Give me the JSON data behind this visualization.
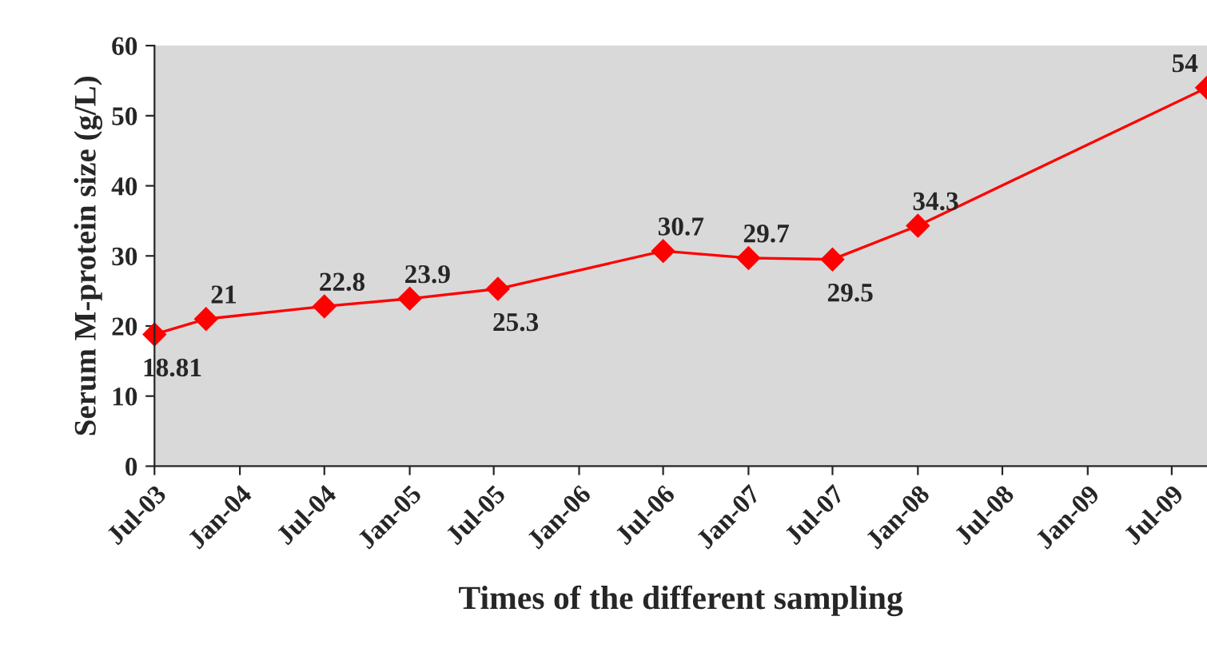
{
  "chart_data": {
    "type": "line",
    "xlabel": "Times of the different sampling",
    "ylabel": "Serum M-protein size (g/L)",
    "x": [
      "2003-07-01",
      "2003-10-20",
      "2004-07-01",
      "2005-01-01",
      "2005-07-10",
      "2006-07-01",
      "2007-01-01",
      "2007-07-01",
      "2008-01-01",
      "2009-09-15"
    ],
    "series": [
      {
        "color": "#ff0000",
        "values": [
          18.81,
          21,
          22.8,
          23.9,
          25.3,
          30.7,
          29.7,
          29.5,
          34.3,
          54
        ]
      }
    ],
    "data_labels": true,
    "marker": "diamond",
    "line_style": "solid",
    "grid": false,
    "legend": false,
    "ylim": [
      0,
      60
    ],
    "yticks": [
      0,
      10,
      20,
      30,
      40,
      50,
      60
    ],
    "xlim": [
      "2003-07-01",
      "2009-09-15"
    ],
    "xticks": [
      {
        "value": "2003-07-01",
        "label": "Jul-03"
      },
      {
        "value": "2004-01-01",
        "label": "Jan-04"
      },
      {
        "value": "2004-07-01",
        "label": "Jul-04"
      },
      {
        "value": "2005-01-01",
        "label": "Jan-05"
      },
      {
        "value": "2005-07-01",
        "label": "Jul-05"
      },
      {
        "value": "2006-01-01",
        "label": "Jan-06"
      },
      {
        "value": "2006-07-01",
        "label": "Jul-06"
      },
      {
        "value": "2007-01-01",
        "label": "Jan-07"
      },
      {
        "value": "2007-07-01",
        "label": "Jul-07"
      },
      {
        "value": "2008-01-01",
        "label": "Jan-08"
      },
      {
        "value": "2008-07-01",
        "label": "Jul-08"
      },
      {
        "value": "2009-01-01",
        "label": "Jan-09"
      },
      {
        "value": "2009-07-01",
        "label": "Jul-09"
      }
    ]
  }
}
